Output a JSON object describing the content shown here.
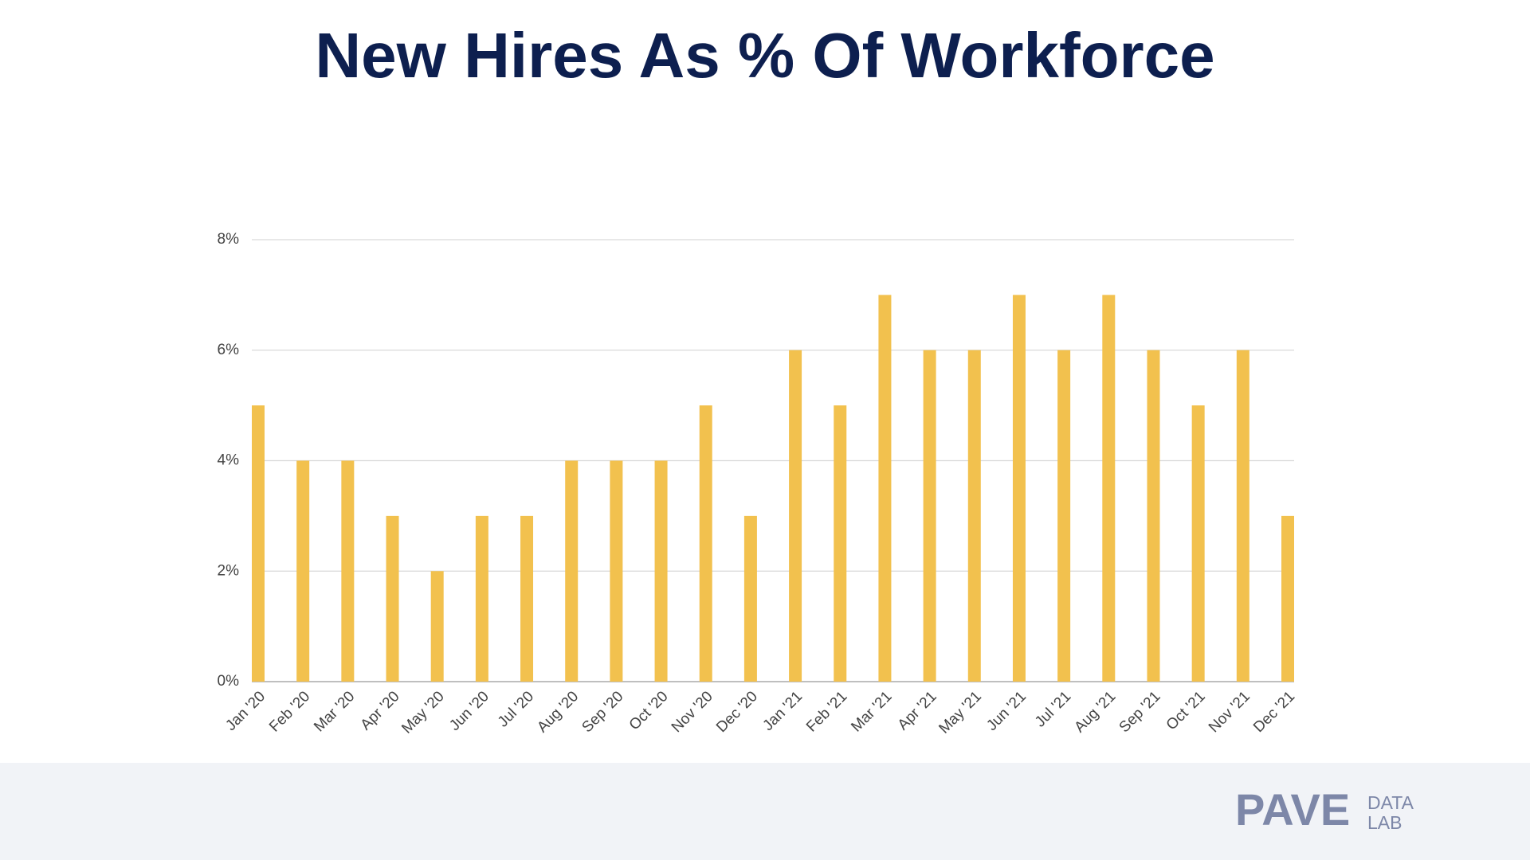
{
  "chart_data": {
    "type": "bar",
    "title": "New Hires As % Of Workforce",
    "categories": [
      "Jan '20",
      "Feb '20",
      "Mar '20",
      "Apr '20",
      "May '20",
      "Jun '20",
      "Jul '20",
      "Aug '20",
      "Sep '20",
      "Oct '20",
      "Nov '20",
      "Dec '20",
      "Jan '21",
      "Feb '21",
      "Mar '21",
      "Apr '21",
      "May '21",
      "Jun '21",
      "Jul '21",
      "Aug '21",
      "Sep '21",
      "Oct '21",
      "Nov '21",
      "Dec '21"
    ],
    "values": [
      5,
      4,
      4,
      3,
      2,
      3,
      3,
      4,
      4,
      4,
      5,
      3,
      6,
      5,
      7,
      6,
      6,
      7,
      6,
      7,
      6,
      5,
      6,
      3
    ],
    "color": "#f2c14e",
    "ylim": [
      0,
      8
    ],
    "yticks": [
      {
        "value": 0,
        "label": "0%"
      },
      {
        "value": 2,
        "label": "2%"
      },
      {
        "value": 4,
        "label": "4%"
      },
      {
        "value": 6,
        "label": "6%"
      },
      {
        "value": 8,
        "label": "8%"
      }
    ],
    "grid": true
  },
  "footer": {
    "logo": "PAVE",
    "logo_sub_1": "DATA",
    "logo_sub_2": "LAB"
  }
}
